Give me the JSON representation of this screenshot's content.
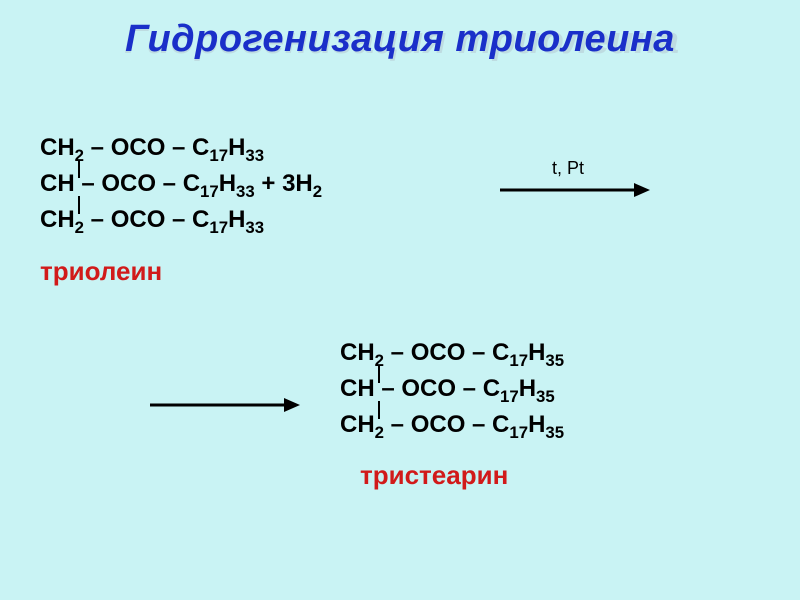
{
  "background_color": "#c9f3f4",
  "title": {
    "text": "Гидрогенизация триолеина",
    "color": "#1a2fc9",
    "fontsize": 38,
    "italic": true,
    "bold": true,
    "ghost_color": "rgba(170, 200, 210, 0.5)"
  },
  "formula_color": "#000000",
  "bond_color": "#000000",
  "reactant": {
    "line1": "CH<sub>2</sub> – OCO – C<sub>17</sub>H<sub>33</sub>",
    "line2": "CH – OCO – C<sub>17</sub>H<sub>33</sub> + 3H<sub>2</sub>",
    "line3": "CH<sub>2</sub> – OCO – C<sub>17</sub>H<sub>33</sub>",
    "label": "триолеин",
    "label_color": "#d11a1a"
  },
  "conditions": {
    "text": "t, Pt",
    "color": "#000000"
  },
  "arrow_color": "#000000",
  "product": {
    "line1": "CH<sub>2</sub> – OCO – C<sub>17</sub>H<sub>35</sub>",
    "line2": "CH – OCO – C<sub>17</sub>H<sub>35</sub>",
    "line3": "CH<sub>2</sub> – OCO – C<sub>17</sub>H<sub>35</sub>",
    "label": "тристеарин",
    "label_color": "#d11a1a"
  }
}
